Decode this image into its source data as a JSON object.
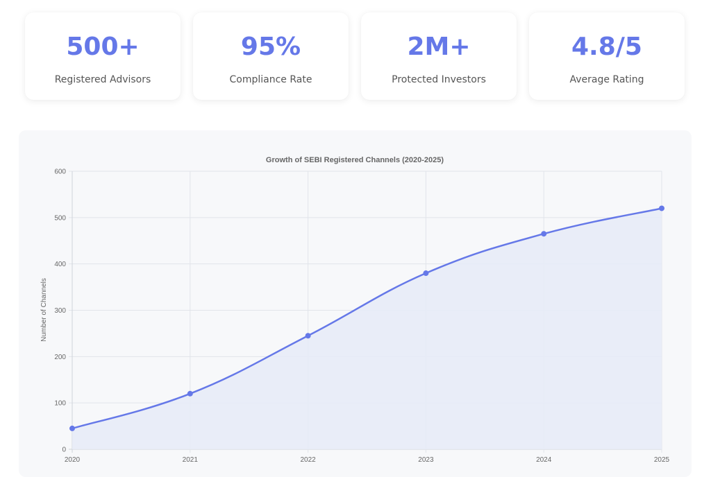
{
  "accent_color": "#6578e8",
  "stats": [
    {
      "value": "500+",
      "label": "Registered Advisors"
    },
    {
      "value": "95%",
      "label": "Compliance Rate"
    },
    {
      "value": "2M+",
      "label": "Protected Investors"
    },
    {
      "value": "4.8/5",
      "label": "Average Rating"
    }
  ],
  "chart_data": {
    "type": "area",
    "title": "Growth of SEBI Registered Channels (2020-2025)",
    "xlabel": "",
    "ylabel": "Number of Channels",
    "categories": [
      "2020",
      "2021",
      "2022",
      "2023",
      "2024",
      "2025"
    ],
    "series": [
      {
        "values": [
          45,
          120,
          245,
          380,
          465,
          520
        ]
      }
    ],
    "ylim": [
      0,
      600
    ],
    "yticks": [
      0,
      100,
      200,
      300,
      400,
      500,
      600
    ],
    "grid": true,
    "line_color": "#6578e8",
    "fill_color": "#e7ebf7"
  }
}
